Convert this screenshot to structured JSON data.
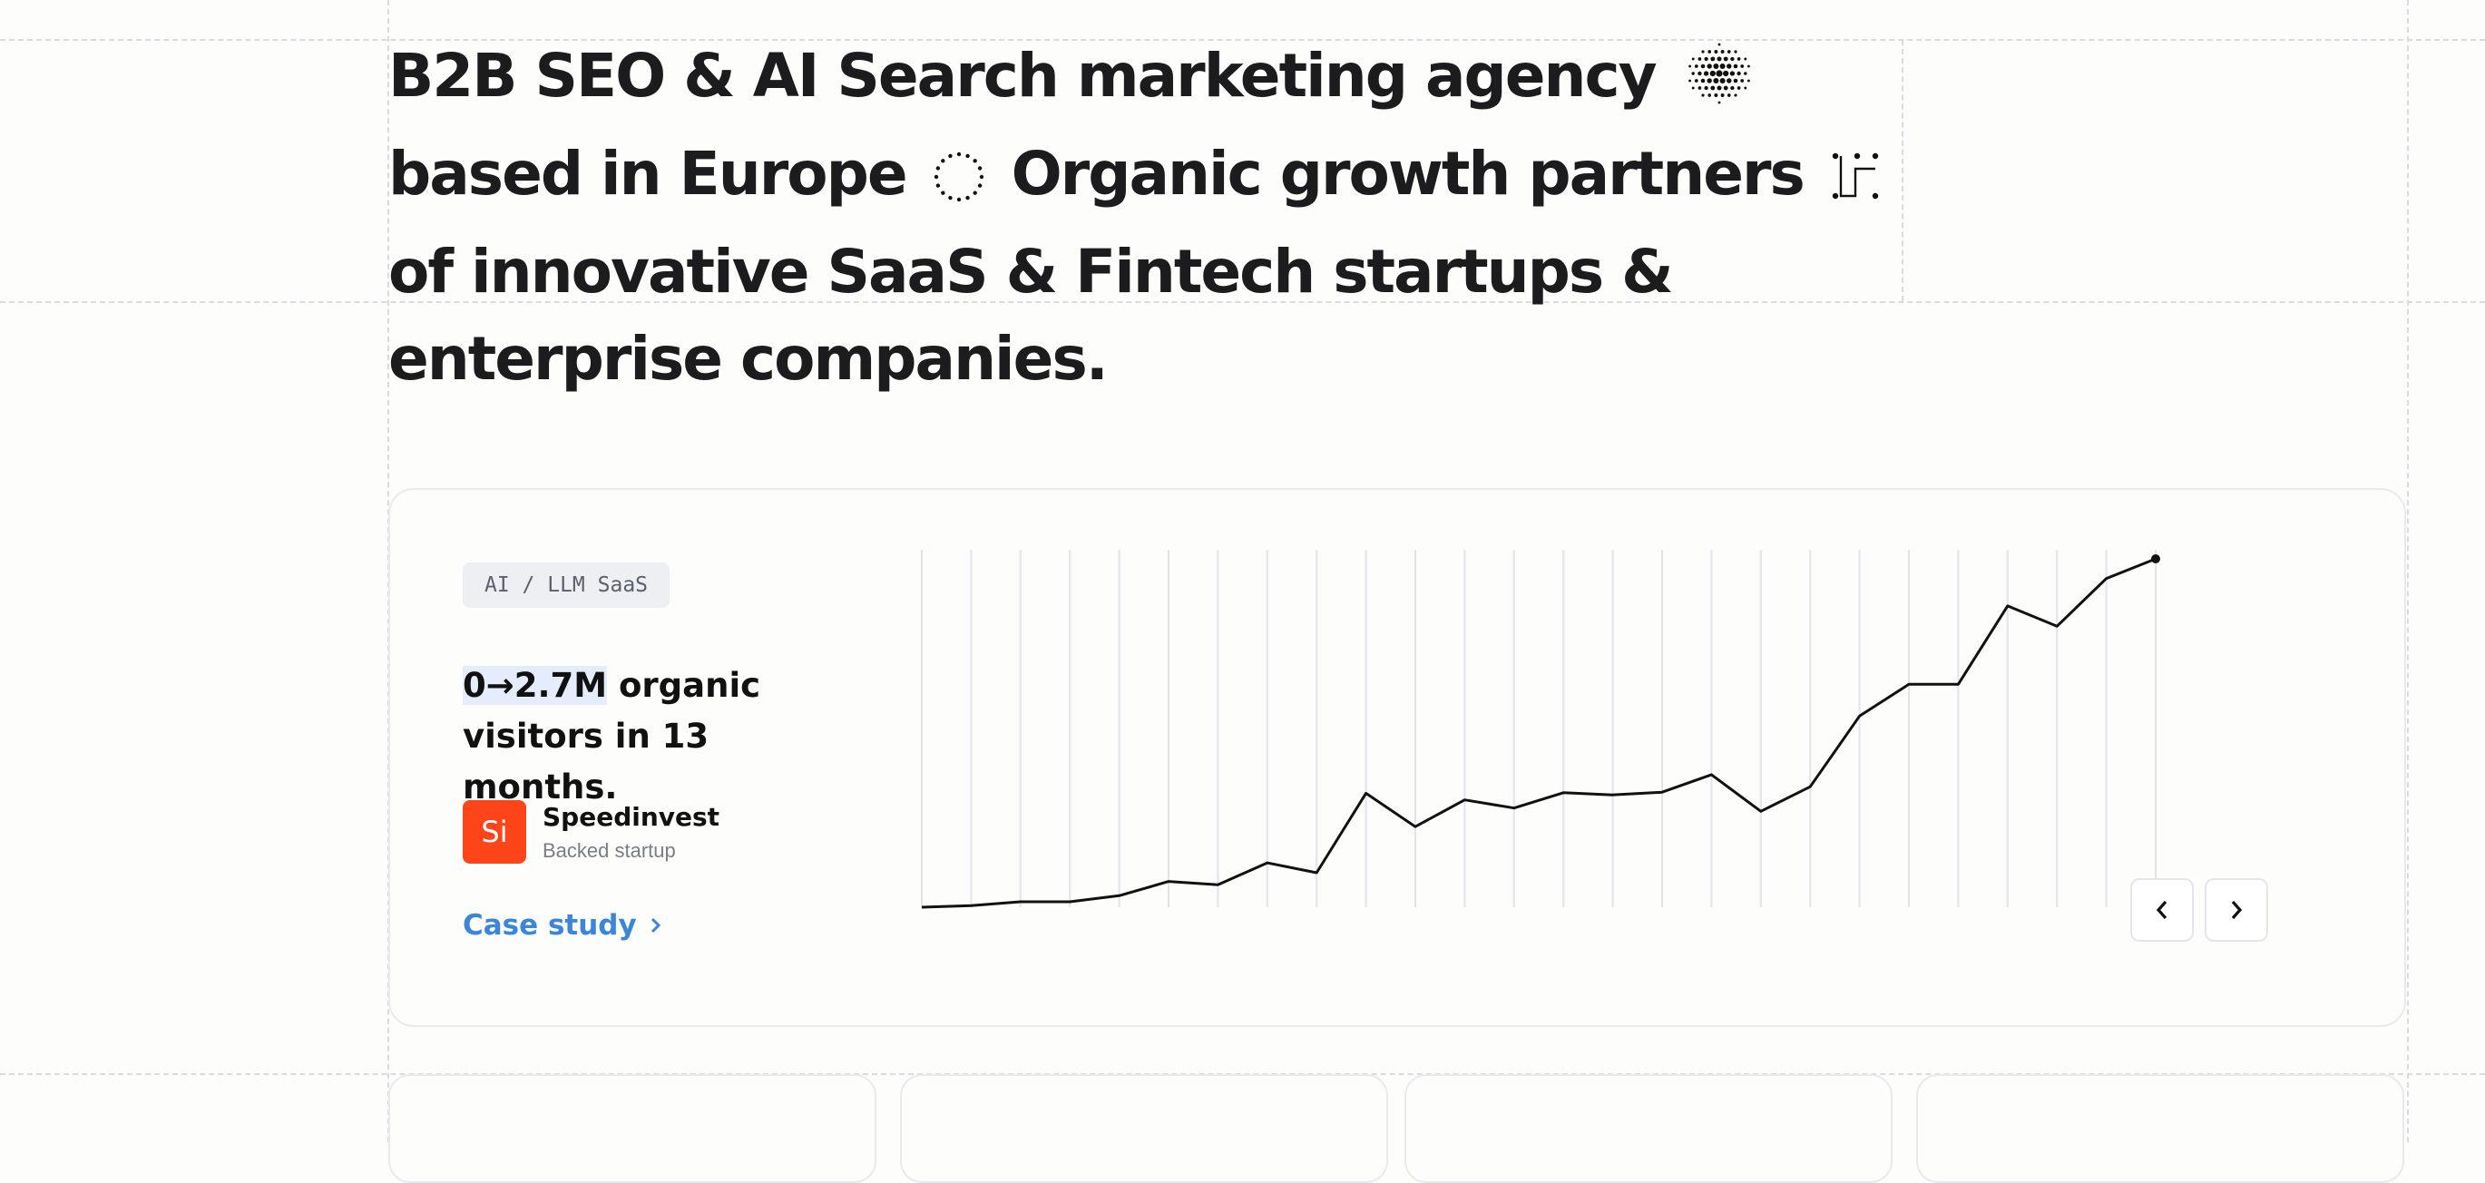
{
  "hero": {
    "part1": "B2B SEO & AI Search marketing agency",
    "part2": "based in Europe",
    "part3": "Organic growth partners",
    "part4": "of innovative SaaS & Fintech startups & enterprise companies.",
    "icons": [
      "dotted-sphere-icon",
      "dotted-circle-icon",
      "dotted-path-icon"
    ]
  },
  "case": {
    "tag": "AI / LLM SaaS",
    "stat_highlight": "0→2.7M",
    "stat_rest": " organic visitors in 13 months.",
    "company_logo": "Si",
    "company_name": "Speedinvest",
    "company_sub": "Backed startup",
    "link_label": "Case study",
    "prev_icon": "chevron-left-icon",
    "next_icon": "chevron-right-icon",
    "logo_color": "#fe4519",
    "link_color": "#3b86d9"
  },
  "chart_data": {
    "type": "line",
    "title": "",
    "xlabel": "",
    "ylabel": "",
    "grid": "vertical lines",
    "values": [
      0,
      0.03,
      0.1,
      0.1,
      0.21,
      0.47,
      0.41,
      0.81,
      0.63,
      2.08,
      1.47,
      1.96,
      1.81,
      2.09,
      2.05,
      2.1,
      2.42,
      1.75,
      2.2,
      3.49,
      4.07,
      4.07,
      5.5,
      5.13,
      6.0,
      6.36
    ],
    "ylim": [
      0,
      6.36
    ]
  },
  "colors": {
    "line": "#111111",
    "grid": "#e3e4e7"
  }
}
